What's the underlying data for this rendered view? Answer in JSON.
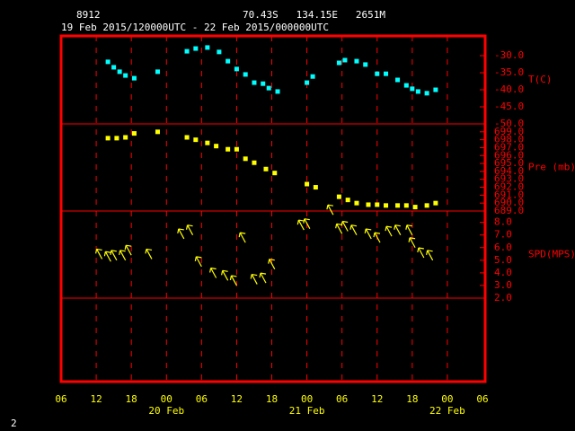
{
  "header": {
    "station": "8912",
    "location": "70.43S   134.15E   2651M",
    "period": "19 Feb 2015/120000UTC - 22 Feb 2015/000000UTC"
  },
  "footer": "2",
  "chart_data": [
    {
      "type": "scatter",
      "ylabel": "T(C)",
      "color": "#00ffff",
      "x": [
        8,
        9,
        10,
        11,
        12.5,
        16.5,
        21.5,
        23,
        25,
        27,
        28.5,
        30,
        31.5,
        33,
        34.5,
        35.5,
        37,
        42,
        43,
        47.5,
        48.5,
        50.5,
        52,
        54,
        55.5,
        57.5,
        59,
        60,
        61,
        62.5,
        64
      ],
      "values": [
        -31.8,
        -33.4,
        -34.7,
        -35.8,
        -36.6,
        -34.7,
        -28.7,
        -27.9,
        -27.6,
        -28.9,
        -31.6,
        -33.9,
        -35.5,
        -37.9,
        -38.2,
        -39.5,
        -40.5,
        -37.9,
        -36.1,
        -32.1,
        -31.3,
        -31.6,
        -32.6,
        -35.3,
        -35.3,
        -37.1,
        -38.7,
        -39.7,
        -40.5,
        -41,
        -40
      ],
      "ylim": [
        -50,
        -24.2
      ],
      "yticks": [
        {
          "value": -30,
          "label": "-30.0"
        },
        {
          "value": -35,
          "label": "-35.0"
        },
        {
          "value": -40,
          "label": "-40.0"
        },
        {
          "value": -45,
          "label": "-45.0"
        },
        {
          "value": -50,
          "label": "-50.0"
        }
      ]
    },
    {
      "type": "scatter",
      "ylabel": "Pre (mb)",
      "color": "#ffff00",
      "x": [
        8,
        9.5,
        11,
        12.5,
        16.5,
        21.5,
        23,
        25,
        26.5,
        28.5,
        30,
        31.5,
        33,
        35,
        36.5,
        42,
        43.5,
        47.5,
        49,
        50.5,
        52.5,
        54,
        55.5,
        57.5,
        59,
        60.5,
        62.5,
        64
      ],
      "values": [
        698.2,
        698.2,
        698.3,
        698.8,
        699,
        698.3,
        698,
        697.6,
        697.2,
        696.8,
        696.8,
        695.6,
        695.1,
        694.3,
        693.8,
        692.4,
        692,
        690.8,
        690.4,
        690,
        689.8,
        689.8,
        689.7,
        689.7,
        689.7,
        689.5,
        689.7,
        690
      ],
      "ylim": [
        689,
        700
      ],
      "yticks": [
        {
          "value": 699,
          "label": "699.0"
        },
        {
          "value": 698,
          "label": "698.0"
        },
        {
          "value": 697,
          "label": "697.0"
        },
        {
          "value": 696,
          "label": "696.0"
        },
        {
          "value": 695,
          "label": "695.0"
        },
        {
          "value": 694,
          "label": "694.0"
        },
        {
          "value": 693,
          "label": "693.0"
        },
        {
          "value": 692,
          "label": "692.0"
        },
        {
          "value": 691,
          "label": "691.0"
        },
        {
          "value": 690,
          "label": "690.0"
        },
        {
          "value": 689,
          "label": "689.0"
        }
      ]
    },
    {
      "type": "wind",
      "ylabel": "SPD(MPS)",
      "color": "#ffff00",
      "x": [
        7,
        8.5,
        9.5,
        11,
        12,
        15.5,
        21,
        22.5,
        24,
        26.5,
        28.5,
        30,
        31.5,
        33.5,
        35,
        36.5,
        41.5,
        42.5,
        46.5,
        48,
        49,
        50.5,
        53,
        54.5,
        56.5,
        58,
        60,
        60.5,
        62,
        63.5
      ],
      "values": [
        5.1,
        4.9,
        5,
        5,
        5.4,
        5.1,
        6.7,
        7,
        4.5,
        3.6,
        3.4,
        3,
        6.4,
        3.1,
        3.2,
        4.3,
        7.4,
        7.5,
        8.6,
        7.1,
        7.3,
        7,
        6.7,
        6.4,
        6.9,
        7,
        7,
        6,
        5.2,
        5
      ],
      "ylim": [
        2,
        8.9
      ],
      "yticks": [
        {
          "value": 8,
          "label": "8.0"
        },
        {
          "value": 7,
          "label": "7.0"
        },
        {
          "value": 6,
          "label": "6.0"
        },
        {
          "value": 5,
          "label": "5.0"
        },
        {
          "value": 4,
          "label": "4.0"
        },
        {
          "value": 3,
          "label": "3.0"
        },
        {
          "value": 2,
          "label": "2.0"
        }
      ],
      "xlim": [
        0,
        72
      ],
      "xticks": [
        {
          "value": 0,
          "label": "06"
        },
        {
          "value": 6,
          "label": "12"
        },
        {
          "value": 12,
          "label": "18"
        },
        {
          "value": 18,
          "label": "00"
        },
        {
          "value": 24,
          "label": "06"
        },
        {
          "value": 30,
          "label": "12"
        },
        {
          "value": 36,
          "label": "18"
        },
        {
          "value": 42,
          "label": "00"
        },
        {
          "value": 48,
          "label": "06"
        },
        {
          "value": 54,
          "label": "12"
        },
        {
          "value": 60,
          "label": "18"
        },
        {
          "value": 66,
          "label": "00"
        },
        {
          "value": 72,
          "label": "06"
        }
      ],
      "date_labels": [
        {
          "value": 18,
          "label": "20 Feb"
        },
        {
          "value": 42,
          "label": "21 Feb"
        },
        {
          "value": 66,
          "label": "22 Feb"
        }
      ]
    }
  ]
}
